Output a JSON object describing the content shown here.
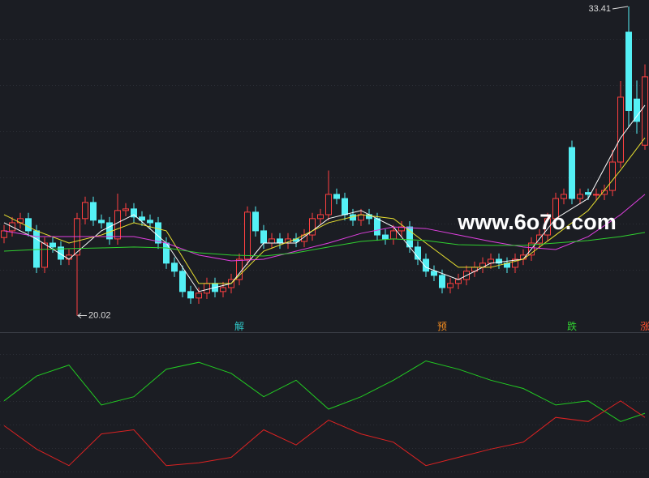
{
  "chart_data": {
    "type": "candlestick",
    "candles": [
      [
        23.4,
        23.94,
        23.15,
        23.69
      ],
      [
        23.69,
        24.29,
        23.44,
        24.04
      ],
      [
        24.04,
        24.47,
        23.79,
        24.22
      ],
      [
        24.22,
        24.47,
        23.44,
        23.69
      ],
      [
        23.69,
        23.94,
        21.86,
        22.11
      ],
      [
        22.11,
        23.41,
        21.86,
        23.16
      ],
      [
        23.16,
        23.41,
        22.74,
        22.99
      ],
      [
        22.99,
        23.24,
        22.21,
        22.46
      ],
      [
        22.46,
        22.89,
        22.21,
        22.64
      ],
      [
        22.64,
        24.47,
        20.02,
        24.22
      ],
      [
        24.22,
        25.17,
        23.97,
        24.92
      ],
      [
        24.92,
        25.17,
        23.9,
        24.15
      ],
      [
        24.15,
        24.4,
        23.79,
        24.04
      ],
      [
        24.04,
        24.29,
        23.09,
        23.34
      ],
      [
        23.34,
        25.3,
        23.09,
        24.57
      ],
      [
        24.57,
        24.89,
        24.32,
        24.64
      ],
      [
        24.64,
        24.89,
        24.04,
        24.29
      ],
      [
        24.29,
        24.54,
        23.9,
        24.15
      ],
      [
        24.15,
        24.4,
        23.79,
        24.04
      ],
      [
        24.04,
        24.29,
        22.91,
        23.16
      ],
      [
        23.16,
        23.41,
        22.04,
        22.29
      ],
      [
        22.29,
        22.54,
        21.69,
        21.94
      ],
      [
        21.94,
        22.19,
        20.81,
        21.06
      ],
      [
        21.06,
        21.31,
        20.53,
        20.78
      ],
      [
        20.78,
        21.24,
        20.53,
        20.99
      ],
      [
        20.99,
        21.66,
        20.74,
        21.41
      ],
      [
        21.41,
        21.66,
        20.81,
        21.06
      ],
      [
        21.06,
        21.48,
        20.81,
        21.23
      ],
      [
        21.23,
        21.83,
        20.98,
        21.58
      ],
      [
        21.58,
        22.71,
        21.33,
        22.46
      ],
      [
        22.46,
        24.75,
        22.21,
        24.5
      ],
      [
        24.5,
        24.75,
        23.44,
        23.69
      ],
      [
        23.69,
        23.94,
        22.91,
        23.16
      ],
      [
        23.16,
        23.59,
        22.91,
        23.34
      ],
      [
        23.34,
        23.59,
        22.91,
        23.16
      ],
      [
        23.16,
        23.59,
        22.91,
        23.34
      ],
      [
        23.34,
        23.59,
        22.98,
        23.23
      ],
      [
        23.23,
        23.76,
        22.98,
        23.51
      ],
      [
        23.51,
        24.47,
        23.26,
        24.22
      ],
      [
        24.22,
        24.64,
        23.97,
        24.39
      ],
      [
        24.39,
        26.3,
        24.14,
        25.27
      ],
      [
        25.27,
        25.52,
        24.84,
        25.09
      ],
      [
        25.09,
        25.34,
        24.14,
        24.39
      ],
      [
        24.39,
        24.64,
        23.9,
        24.15
      ],
      [
        24.15,
        24.64,
        23.9,
        24.39
      ],
      [
        24.39,
        24.64,
        23.97,
        24.22
      ],
      [
        24.22,
        24.47,
        23.26,
        23.51
      ],
      [
        23.51,
        23.76,
        23.09,
        23.34
      ],
      [
        23.34,
        23.94,
        23.09,
        23.69
      ],
      [
        23.69,
        24.11,
        23.44,
        23.86
      ],
      [
        23.86,
        24.11,
        22.74,
        22.99
      ],
      [
        22.99,
        23.24,
        22.21,
        22.46
      ],
      [
        22.46,
        22.71,
        21.69,
        21.94
      ],
      [
        21.94,
        22.19,
        21.51,
        21.76
      ],
      [
        21.76,
        22.01,
        20.98,
        21.23
      ],
      [
        21.23,
        21.66,
        20.98,
        21.41
      ],
      [
        21.41,
        21.83,
        21.16,
        21.58
      ],
      [
        21.58,
        22.19,
        21.33,
        21.94
      ],
      [
        21.94,
        22.36,
        21.69,
        22.11
      ],
      [
        22.11,
        22.54,
        21.86,
        22.29
      ],
      [
        22.29,
        22.71,
        22.04,
        22.46
      ],
      [
        22.46,
        22.71,
        22.04,
        22.29
      ],
      [
        22.29,
        22.54,
        21.86,
        22.11
      ],
      [
        22.11,
        22.71,
        21.86,
        22.46
      ],
      [
        22.46,
        22.89,
        22.21,
        22.64
      ],
      [
        22.64,
        23.41,
        22.39,
        23.16
      ],
      [
        23.16,
        23.76,
        22.91,
        23.51
      ],
      [
        23.51,
        24.47,
        23.26,
        24.22
      ],
      [
        24.22,
        25.34,
        23.97,
        25.09
      ],
      [
        25.09,
        25.52,
        24.84,
        25.27
      ],
      [
        27.3,
        27.6,
        24.84,
        25.09
      ],
      [
        25.09,
        25.52,
        24.84,
        25.27
      ],
      [
        25.35,
        25.52,
        25.02,
        25.27
      ],
      [
        25.27,
        25.52,
        25.02,
        25.27
      ],
      [
        25.27,
        25.69,
        25.02,
        25.44
      ],
      [
        25.44,
        27.2,
        25.19,
        26.67
      ],
      [
        26.67,
        30.18,
        26.42,
        29.48
      ],
      [
        32.3,
        33.41,
        28.18,
        28.9
      ],
      [
        29.4,
        30.2,
        27.9,
        28.43
      ],
      [
        27.4,
        30.9,
        27.2,
        30.36
      ]
    ],
    "up_color": "#ff4040",
    "down_color": "#54f0f5",
    "ylim": [
      19.3,
      33.69
    ],
    "yticks": [
      22,
      24,
      26,
      28,
      30,
      32
    ],
    "ma": {
      "x": [
        0,
        4,
        8,
        12,
        16,
        20,
        24,
        28,
        32,
        36,
        40,
        44,
        48,
        52,
        56,
        60,
        64,
        68,
        72,
        76,
        79
      ],
      "series": [
        {
          "color": "#ffffff",
          "values": [
            24.04,
            23.34,
            22.46,
            23.69,
            24.39,
            23.16,
            21.06,
            21.41,
            23.16,
            23.16,
            24.22,
            24.57,
            23.86,
            22.11,
            21.58,
            22.29,
            22.46,
            24.22,
            25.09,
            27.72,
            29.13
          ]
        },
        {
          "color": "#e8e030",
          "values": [
            24.39,
            23.69,
            23.16,
            23.51,
            24.04,
            23.69,
            21.41,
            21.41,
            22.81,
            23.34,
            24.04,
            24.39,
            24.22,
            23.16,
            22.11,
            22.11,
            22.46,
            23.51,
            24.57,
            26.32,
            27.72
          ]
        },
        {
          "color": "#e040e0",
          "values": [
            23.69,
            23.44,
            23.44,
            23.44,
            23.44,
            23.16,
            22.64,
            22.39,
            22.46,
            22.81,
            23.16,
            23.58,
            23.86,
            23.79,
            23.51,
            23.23,
            22.99,
            22.88,
            23.44,
            24.39,
            25.27
          ]
        },
        {
          "color": "#30d030",
          "values": [
            22.81,
            22.88,
            22.92,
            22.95,
            22.99,
            22.95,
            22.74,
            22.64,
            22.6,
            22.74,
            22.99,
            23.23,
            23.34,
            23.27,
            23.09,
            23.06,
            23.06,
            23.16,
            23.27,
            23.44,
            23.62
          ]
        }
      ]
    },
    "markers": [
      {
        "index": 29,
        "label": "解",
        "color": "#2fc7c7"
      },
      {
        "index": 54,
        "label": "预",
        "color": "#f08a20"
      },
      {
        "index": 70,
        "label": "跌",
        "color": "#30d030"
      },
      {
        "index": 79,
        "label": "涨",
        "color": "#ff5030"
      }
    ],
    "watermark": "www.6o7o.com",
    "oscillator": {
      "ylim": [
        0,
        100
      ],
      "yticks": [
        5,
        22,
        39,
        56,
        73,
        90
      ],
      "series": [
        {
          "color": "#22cc22",
          "values": [
            56,
            74,
            82,
            53,
            59,
            79,
            84,
            76,
            59,
            71,
            50,
            59,
            71,
            85,
            79,
            71,
            65,
            53,
            56,
            41,
            47
          ]
        },
        {
          "color": "#dd2222",
          "values": [
            38,
            21,
            9,
            32,
            35,
            9,
            11,
            15,
            35,
            24,
            42,
            32,
            26,
            9,
            15,
            21,
            26,
            44,
            41,
            56,
            44
          ]
        }
      ]
    }
  }
}
